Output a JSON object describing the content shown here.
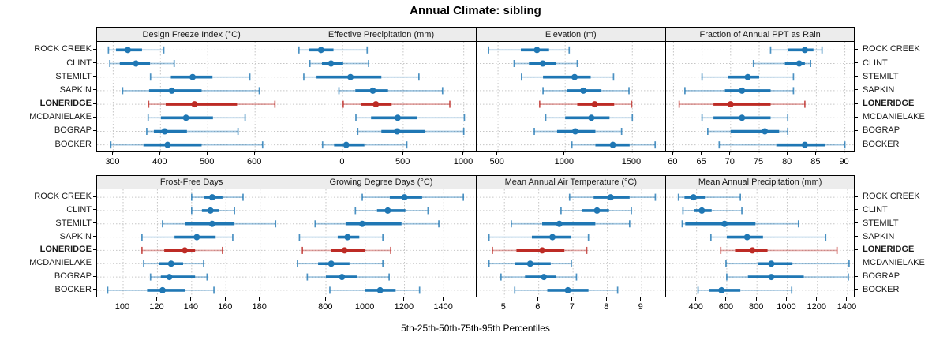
{
  "chart_data": {
    "type": "dotplot-percentile-trellis",
    "title": "Annual Climate: sibling",
    "caption": "5th-25th-50th-75th-95th Percentiles",
    "percentile_labels": [
      "5th",
      "25th",
      "50th",
      "75th",
      "95th"
    ],
    "sites": [
      "ROCK CREEK",
      "CLINT",
      "STEMILT",
      "SAPKIN",
      "LONERIDGE",
      "MCDANIELAKE",
      "BOGRAP",
      "BOCKER"
    ],
    "highlighted_site": "LONERIDGE",
    "colors": {
      "series_normal": "#1f77b4",
      "series_highlight": "#bd2b25",
      "strip_bg": "#ececec",
      "grid": "#c6c6c6"
    },
    "grid": "dotted",
    "legend_position": "none",
    "panels": [
      {
        "title": "Design Freeze Index (°C)",
        "row": 0,
        "col": 0,
        "xlim": [
          266,
          667
        ],
        "ticks": [
          300,
          400,
          500,
          600
        ],
        "values": [
          [
            290,
            306,
            331,
            361,
            407
          ],
          [
            293,
            314,
            348,
            378,
            429
          ],
          [
            379,
            422,
            468,
            510,
            589
          ],
          [
            320,
            376,
            424,
            487,
            609
          ],
          [
            375,
            411,
            472,
            562,
            642
          ],
          [
            374,
            401,
            454,
            511,
            579
          ],
          [
            371,
            386,
            409,
            456,
            564
          ],
          [
            295,
            364,
            415,
            487,
            616
          ]
        ]
      },
      {
        "title": "Effective Precipitation (mm)",
        "row": 0,
        "col": 1,
        "xlim": [
          -463,
          1102
        ],
        "ticks": [
          0,
          500,
          1000
        ],
        "values": [
          [
            -360,
            -280,
            -178,
            -75,
            203
          ],
          [
            -270,
            -170,
            -95,
            5,
            215
          ],
          [
            -320,
            -215,
            65,
            320,
            630
          ],
          [
            -30,
            105,
            250,
            375,
            825
          ],
          [
            5,
            150,
            275,
            405,
            885
          ],
          [
            110,
            235,
            455,
            615,
            1005
          ],
          [
            125,
            320,
            450,
            680,
            1000
          ],
          [
            -165,
            -70,
            30,
            180,
            530
          ]
        ]
      },
      {
        "title": "Elevation (m)",
        "row": 0,
        "col": 2,
        "xlim": [
          341,
          1753
        ],
        "ticks": [
          500,
          1000,
          1500
        ],
        "values": [
          [
            430,
            670,
            790,
            880,
            1030
          ],
          [
            620,
            730,
            833,
            930,
            1090
          ],
          [
            675,
            835,
            1070,
            1190,
            1360
          ],
          [
            835,
            1015,
            1135,
            1270,
            1475
          ],
          [
            810,
            1090,
            1220,
            1365,
            1495
          ],
          [
            855,
            1000,
            1195,
            1330,
            1500
          ],
          [
            770,
            940,
            1075,
            1225,
            1420
          ],
          [
            1050,
            1225,
            1355,
            1480,
            1670
          ]
        ]
      },
      {
        "title": "Fraction of Annual PPT as Rain",
        "row": 0,
        "col": 3,
        "xlim": [
          58.7,
          91.9
        ],
        "ticks": [
          60,
          65,
          70,
          75,
          80,
          85,
          90
        ],
        "values": [
          [
            77,
            80,
            83,
            84.5,
            86
          ],
          [
            74,
            79.5,
            82,
            83,
            84
          ],
          [
            65,
            69.5,
            73,
            75,
            81
          ],
          [
            62,
            69,
            72,
            77,
            81
          ],
          [
            61,
            67,
            70,
            77,
            83
          ],
          [
            65,
            67,
            72,
            77,
            80
          ],
          [
            66,
            70,
            76,
            78.5,
            80
          ],
          [
            68,
            78,
            83,
            86.5,
            90
          ]
        ]
      },
      {
        "title": "Frost-Free Days",
        "row": 1,
        "col": 0,
        "xlim": [
          84.8,
          195.5
        ],
        "ticks": [
          100,
          120,
          140,
          160,
          180
        ],
        "values": [
          [
            140,
            147,
            152,
            158,
            170
          ],
          [
            140,
            146,
            151,
            156,
            165
          ],
          [
            123,
            136,
            152,
            165,
            189
          ],
          [
            111,
            130,
            143,
            154,
            164
          ],
          [
            111,
            124,
            136,
            142,
            158
          ],
          [
            112,
            121,
            128,
            135,
            147
          ],
          [
            116,
            122,
            127,
            142,
            149
          ],
          [
            91,
            114,
            123,
            136,
            153
          ]
        ]
      },
      {
        "title": "Growing Degree Days (°C)",
        "row": 1,
        "col": 1,
        "xlim": [
          599,
          1565
        ],
        "ticks": [
          800,
          1000,
          1200,
          1400
        ],
        "values": [
          [
            985,
            1125,
            1200,
            1290,
            1500
          ],
          [
            950,
            1060,
            1115,
            1205,
            1320
          ],
          [
            745,
            900,
            985,
            1185,
            1375
          ],
          [
            665,
            860,
            910,
            970,
            1090
          ],
          [
            680,
            825,
            895,
            1000,
            1130
          ],
          [
            655,
            760,
            827,
            920,
            1090
          ],
          [
            705,
            800,
            882,
            960,
            1122
          ],
          [
            820,
            1000,
            1076,
            1155,
            1277
          ]
        ]
      },
      {
        "title": "Mean Annual Air Temperature (°C)",
        "row": 1,
        "col": 2,
        "xlim": [
          4.19,
          9.72
        ],
        "ticks": [
          5,
          6,
          7,
          8,
          9
        ],
        "values": [
          [
            6.9,
            7.6,
            8.1,
            8.65,
            9.4
          ],
          [
            6.65,
            7.25,
            7.7,
            8.05,
            8.7
          ],
          [
            5.2,
            6.1,
            6.6,
            7.65,
            8.65
          ],
          [
            4.55,
            5.8,
            6.4,
            6.95,
            7.45
          ],
          [
            4.65,
            5.35,
            6.1,
            6.75,
            7.4
          ],
          [
            4.55,
            5.3,
            5.75,
            6.35,
            6.95
          ],
          [
            4.9,
            5.6,
            6.15,
            6.5,
            7.1
          ],
          [
            5.3,
            6.25,
            6.85,
            7.45,
            8.3
          ]
        ]
      },
      {
        "title": "Mean Annual Precipitation (mm)",
        "row": 1,
        "col": 3,
        "xlim": [
          198,
          1454
        ],
        "ticks": [
          400,
          600,
          800,
          1000,
          1200,
          1400
        ],
        "values": [
          [
            280,
            320,
            380,
            455,
            690
          ],
          [
            310,
            385,
            435,
            500,
            700
          ],
          [
            305,
            325,
            585,
            790,
            1075
          ],
          [
            495,
            600,
            735,
            840,
            1255
          ],
          [
            560,
            655,
            770,
            870,
            1330
          ],
          [
            595,
            805,
            895,
            1035,
            1410
          ],
          [
            600,
            740,
            895,
            1110,
            1405
          ],
          [
            410,
            485,
            565,
            690,
            1030
          ]
        ]
      }
    ]
  }
}
